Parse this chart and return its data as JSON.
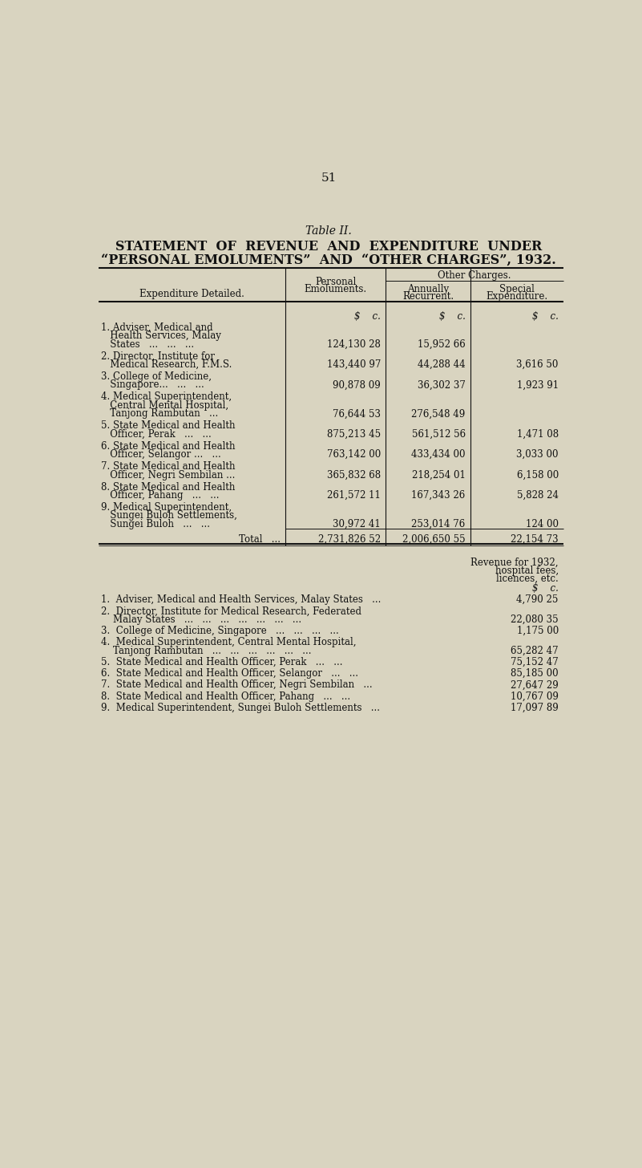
{
  "page_number": "51",
  "title_line1": "Table II.",
  "title_line2": "STATEMENT  OF  REVENUE  AND  EXPENDITURE  UNDER",
  "title_line3": "“PERSONAL EMOLUMENTS”  AND  “OTHER CHARGES”, 1932.",
  "other_charges_header": "Other Charges.",
  "rows": [
    {
      "label_lines": [
        "1. Adviser, Medical and",
        "   Health Services, Malay",
        "   States   ...   ...   ..."
      ],
      "personal": "124,130 28",
      "annually": "15,952 66",
      "special": ""
    },
    {
      "label_lines": [
        "2. Director, Institute for",
        "   Medical Research, F.M.S."
      ],
      "personal": "143,440 97",
      "annually": "44,288 44",
      "special": "3,616 50"
    },
    {
      "label_lines": [
        "3. College of Medicine,",
        "   Singapore...   ...   ..."
      ],
      "personal": "90,878 09",
      "annually": "36,302 37",
      "special": "1,923 91"
    },
    {
      "label_lines": [
        "4. Medical Superintendent,",
        "   Central Mental Hospital,",
        "   Tanjong Rambutan   ..."
      ],
      "personal": "76,644 53",
      "annually": "276,548 49",
      "special": ""
    },
    {
      "label_lines": [
        "5. State Medical and Health",
        "   Officer, Perak   ...   ..."
      ],
      "personal": "875,213 45",
      "annually": "561,512 56",
      "special": "1,471 08"
    },
    {
      "label_lines": [
        "6. State Medical and Health",
        "   Officer, Selangor ...   ..."
      ],
      "personal": "763,142 00",
      "annually": "433,434 00",
      "special": "3,033 00"
    },
    {
      "label_lines": [
        "7. State Medical and Health",
        "   Officer, Negri Sembilan ..."
      ],
      "personal": "365,832 68",
      "annually": "218,254 01",
      "special": "6,158 00"
    },
    {
      "label_lines": [
        "8. State Medical and Health",
        "   Officer, Pahang   ...   ..."
      ],
      "personal": "261,572 11",
      "annually": "167,343 26",
      "special": "5,828 24"
    },
    {
      "label_lines": [
        "9. Medical Superintendent,",
        "   Sungei Buloh Settlements,",
        "   Sungei Buloh   ...   ..."
      ],
      "personal": "30,972 41",
      "annually": "253,014 76",
      "special": "124 00"
    }
  ],
  "total_label": "Total   ...",
  "total_personal": "2,731,826 52",
  "total_annually": "2,006,650 55",
  "total_special": "22,154 73",
  "revenue_rows": [
    {
      "label_lines": [
        "1.  Adviser, Medical and Health Services, Malay States   ..."
      ],
      "value": "4,790 25"
    },
    {
      "label_lines": [
        "2.  Director, Institute for Medical Research, Federated",
        "    Malay States   ...   ...   ...   ...   ...   ...   ..."
      ],
      "value": "22,080 35"
    },
    {
      "label_lines": [
        "3.  College of Medicine, Singapore   ...   ...   ...   ..."
      ],
      "value": "1,175 00"
    },
    {
      "label_lines": [
        "4.  Medical Superintendent, Central Mental Hospital,",
        "    Tanjong Rambutan   ...   ...   ...   ...   ...   ..."
      ],
      "value": "65,282 47"
    },
    {
      "label_lines": [
        "5.  State Medical and Health Officer, Perak   ...   ..."
      ],
      "value": "75,152 47"
    },
    {
      "label_lines": [
        "6.  State Medical and Health Officer, Selangor   ...   ..."
      ],
      "value": "85,185 00"
    },
    {
      "label_lines": [
        "7.  State Medical and Health Officer, Negri Sembilan   ..."
      ],
      "value": "27,647 29"
    },
    {
      "label_lines": [
        "8.  State Medical and Health Officer, Pahang   ...   ..."
      ],
      "value": "10,767 09"
    },
    {
      "label_lines": [
        "9.  Medical Superintendent, Sungei Buloh Settlements   ..."
      ],
      "value": "17,097 89"
    }
  ],
  "bg_color": "#d9d4c0",
  "text_color": "#111111",
  "line_color": "#111111"
}
